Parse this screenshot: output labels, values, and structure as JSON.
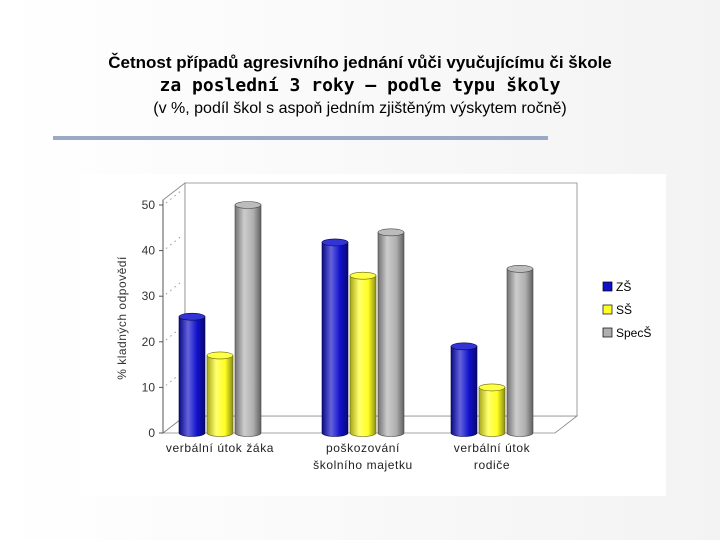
{
  "header": {
    "title": "Četnost případů agresivního jednání vůči vyučujícímu či škole",
    "subtitle": "za poslední 3 roky – podle typu školy",
    "note": "(v %, podíl škol s aspoň jedním zjištěným výskytem ročně)"
  },
  "chart_data": {
    "type": "bar",
    "title": "",
    "xlabel": "",
    "ylabel": "% kladných odpovědí",
    "ylim": [
      0,
      50
    ],
    "yticks": [
      0,
      10,
      20,
      30,
      40,
      50
    ],
    "categories": [
      [
        "verbální útok žáka"
      ],
      [
        "poškozování",
        "školního majetku"
      ],
      [
        "verbální útok",
        "rodiče"
      ]
    ],
    "series": [
      {
        "name": "ZŠ",
        "color": "#1010cc",
        "values": [
          25.5,
          41.8,
          19
        ]
      },
      {
        "name": "SŠ",
        "color": "#ffff22",
        "values": [
          17,
          34.5,
          10
        ]
      },
      {
        "name": "SpecŠ",
        "color": "#b0b0b0",
        "values": [
          50,
          44,
          36
        ]
      }
    ],
    "legend_position": "right",
    "grid": false,
    "three_d": true
  }
}
